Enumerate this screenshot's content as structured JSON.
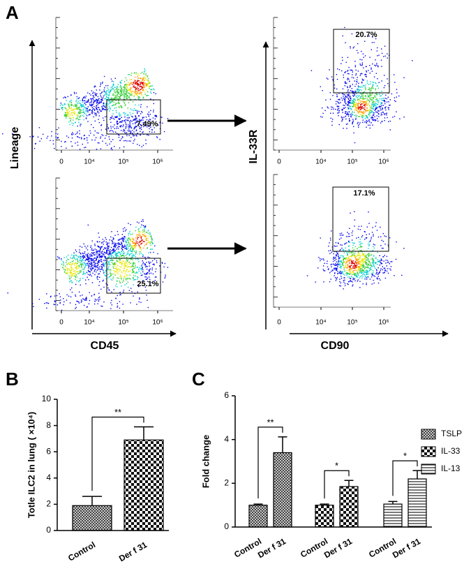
{
  "panel_a": {
    "label": "A",
    "y_axis_label": "Lineage",
    "x_axis_label": "CD45",
    "y2_axis_label": "IL-33R",
    "x2_axis_label": "CD90",
    "xticks": [
      0,
      {
        "value": 10000,
        "label": "10⁴"
      },
      {
        "value": 100000,
        "label": "10⁵"
      },
      {
        "value": 1000000,
        "label": "10⁶"
      }
    ],
    "gates": [
      "7.49%",
      "25.1%",
      "20.7%",
      "17.1%"
    ]
  },
  "chart_data": [
    {
      "panel": "B",
      "type": "bar",
      "y_label": "Totle ILC2 in lung ( ×10⁴)",
      "categories": [
        "Control",
        "Der f 31"
      ],
      "values": [
        1.9,
        6.9
      ],
      "errors": [
        0.7,
        1.0
      ],
      "patterns": [
        "crosshatch",
        "checker"
      ],
      "significance": "**",
      "ylim": [
        0,
        10
      ],
      "yticks": [
        0,
        2,
        4,
        6,
        8,
        10
      ]
    },
    {
      "panel": "C",
      "type": "grouped_bar",
      "y_label": "Fold change",
      "categories": [
        "Control",
        "Der f 31"
      ],
      "series": [
        {
          "name": "TSLP",
          "pattern": "crosshatch",
          "values": [
            1.0,
            3.4
          ],
          "errors": [
            0.05,
            0.72
          ],
          "significance": "**"
        },
        {
          "name": "IL-33",
          "pattern": "checker",
          "values": [
            1.0,
            1.85
          ],
          "errors": [
            0.05,
            0.28
          ],
          "significance": "*"
        },
        {
          "name": "IL-13",
          "pattern": "hlines",
          "values": [
            1.05,
            2.2
          ],
          "errors": [
            0.12,
            0.38
          ],
          "significance": "*"
        }
      ],
      "ylim": [
        0,
        6
      ],
      "yticks": [
        0,
        2,
        4,
        6
      ]
    }
  ]
}
